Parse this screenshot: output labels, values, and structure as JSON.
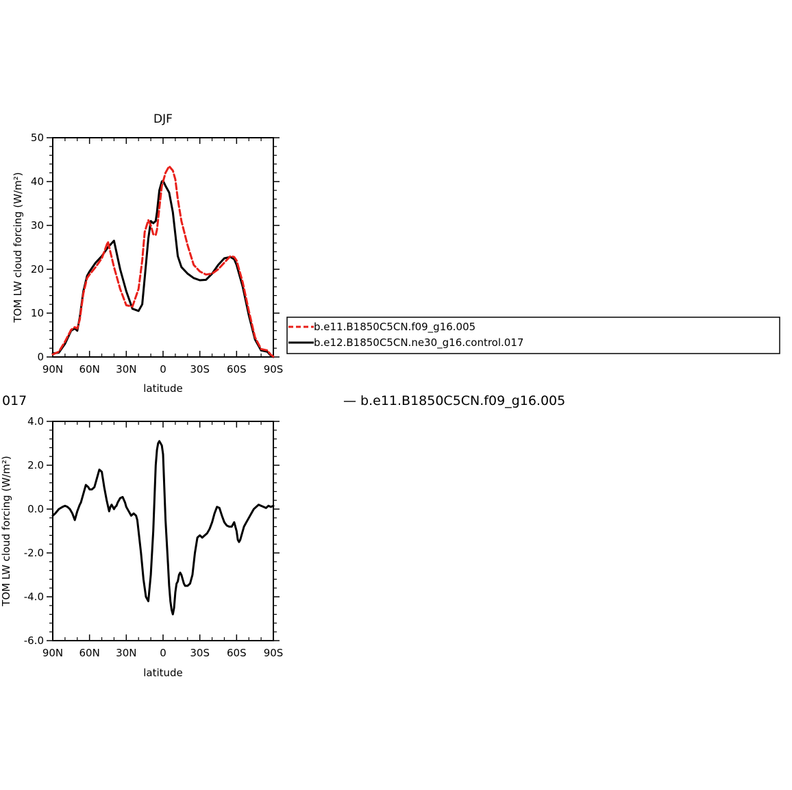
{
  "chart_data": [
    {
      "type": "line",
      "title": "DJF",
      "xlabel": "latitude",
      "ylabel": "TOM LW cloud forcing (W/m²)",
      "xlim": [
        90,
        -90
      ],
      "ylim": [
        0,
        50
      ],
      "x_ticks": [
        {
          "value": 90,
          "label": "90N"
        },
        {
          "value": 60,
          "label": "60N"
        },
        {
          "value": 30,
          "label": "30N"
        },
        {
          "value": 0,
          "label": "0"
        },
        {
          "value": -30,
          "label": "30S"
        },
        {
          "value": -60,
          "label": "60S"
        },
        {
          "value": -90,
          "label": "90S"
        }
      ],
      "y_ticks": [
        {
          "value": 0,
          "label": "0"
        },
        {
          "value": 10,
          "label": "10"
        },
        {
          "value": 20,
          "label": "20"
        },
        {
          "value": 30,
          "label": "30"
        },
        {
          "value": 40,
          "label": "40"
        },
        {
          "value": 50,
          "label": "50"
        }
      ],
      "grid": false,
      "legend_position": "right",
      "series": [
        {
          "name": "b.e11.B1850C5CN.f09_g16.005",
          "color": "#e8201a",
          "dash": "dashed",
          "x": [
            90,
            85,
            80,
            75,
            72,
            70,
            68,
            65,
            62,
            60,
            55,
            50,
            45,
            40,
            35,
            30,
            25,
            20,
            17,
            15,
            12,
            10,
            8,
            6,
            5,
            3,
            1,
            0,
            -2,
            -5,
            -8,
            -10,
            -12,
            -15,
            -20,
            -25,
            -30,
            -35,
            -40,
            -45,
            -50,
            -55,
            -58,
            -60,
            -65,
            -70,
            -75,
            -80,
            -85,
            -88,
            -90
          ],
          "y": [
            0.6,
            1.2,
            3.5,
            6.2,
            6.8,
            6.5,
            8.5,
            14.5,
            18.0,
            18.8,
            20.5,
            22.5,
            26.3,
            20.5,
            15.5,
            11.8,
            11.5,
            15.5,
            22.0,
            28.5,
            31.2,
            30.0,
            28.0,
            27.8,
            29.0,
            34.0,
            39.0,
            40.0,
            42.0,
            43.5,
            42.5,
            40.5,
            36.0,
            31.0,
            25.5,
            21.0,
            19.5,
            18.8,
            19.0,
            20.0,
            21.5,
            23.0,
            22.8,
            22.0,
            17.0,
            10.5,
            4.5,
            1.8,
            1.5,
            0.5,
            0.1
          ]
        },
        {
          "name": "b.e12.B1850C5CN.ne30_g16.control.017",
          "color": "#000000",
          "dash": "solid",
          "x": [
            90,
            85,
            80,
            75,
            72,
            70,
            68,
            65,
            62,
            60,
            55,
            50,
            45,
            40,
            35,
            30,
            25,
            20,
            17,
            15,
            12,
            10,
            8,
            6,
            5,
            3,
            1,
            0,
            -2,
            -5,
            -8,
            -10,
            -12,
            -15,
            -20,
            -25,
            -30,
            -35,
            -40,
            -45,
            -50,
            -55,
            -58,
            -60,
            -65,
            -70,
            -75,
            -80,
            -85,
            -88,
            -90
          ],
          "y": [
            0.8,
            1.0,
            3.0,
            6.0,
            6.5,
            6.0,
            9.0,
            15.0,
            18.5,
            19.5,
            21.5,
            23.0,
            25.0,
            26.5,
            20.0,
            15.0,
            11.0,
            10.5,
            12.0,
            18.0,
            27.0,
            31.0,
            30.5,
            31.0,
            33.0,
            38.0,
            40.0,
            40.2,
            39.0,
            37.5,
            33.0,
            28.0,
            23.0,
            20.5,
            19.0,
            18.0,
            17.5,
            17.6,
            19.0,
            21.0,
            22.5,
            22.8,
            22.3,
            21.0,
            16.0,
            9.5,
            4.0,
            1.5,
            1.2,
            0.3,
            0.0
          ]
        }
      ]
    },
    {
      "type": "line",
      "title": "",
      "xlabel": "latitude",
      "ylabel": "TOM LW cloud forcing (W/m²)",
      "xlim": [
        90,
        -90
      ],
      "ylim": [
        -6.0,
        4.0
      ],
      "x_ticks": [
        {
          "value": 90,
          "label": "90N"
        },
        {
          "value": 60,
          "label": "60N"
        },
        {
          "value": 30,
          "label": "30N"
        },
        {
          "value": 0,
          "label": "0"
        },
        {
          "value": -30,
          "label": "30S"
        },
        {
          "value": -60,
          "label": "60S"
        },
        {
          "value": -90,
          "label": "90S"
        }
      ],
      "y_ticks": [
        {
          "value": 4.0,
          "label": "4.0"
        },
        {
          "value": 2.0,
          "label": "2.0"
        },
        {
          "value": 0.0,
          "label": "0.0"
        },
        {
          "value": -2.0,
          "label": "-2.0"
        },
        {
          "value": -4.0,
          "label": "-4.0"
        },
        {
          "value": -6.0,
          "label": "-6.0"
        }
      ],
      "grid": false,
      "cut_title_left": "017",
      "cut_title_right": "— b.e11.B1850C5CN.f09_g16.005",
      "series": [
        {
          "color": "#000000",
          "dash": "solid",
          "x": [
            90,
            88,
            85,
            82,
            80,
            78,
            76,
            74,
            72,
            70,
            68,
            67,
            65,
            63,
            61,
            60,
            58,
            56,
            54,
            52,
            50,
            48,
            46,
            44,
            43,
            42,
            40,
            39,
            38,
            37,
            35,
            33,
            31,
            30,
            28,
            26,
            24,
            22,
            21,
            20,
            18,
            16,
            14,
            12,
            10,
            8,
            7,
            6,
            5,
            4,
            3,
            2,
            1,
            0,
            -1,
            -2,
            -3,
            -4,
            -5,
            -6,
            -7,
            -8,
            -9,
            -10,
            -11,
            -12,
            -13,
            -14,
            -15,
            -16,
            -17,
            -18,
            -20,
            -22,
            -24,
            -26,
            -28,
            -30,
            -31,
            -32,
            -33,
            -34,
            -36,
            -38,
            -40,
            -42,
            -44,
            -46,
            -48,
            -50,
            -52,
            -54,
            -56,
            -58,
            -60,
            -61,
            -62,
            -63,
            -64,
            -66,
            -68,
            -70,
            -72,
            -74,
            -76,
            -78,
            -80,
            -82,
            -84,
            -86,
            -88,
            -90
          ],
          "y": [
            -0.3,
            -0.2,
            0.0,
            0.1,
            0.15,
            0.1,
            0.0,
            -0.2,
            -0.5,
            -0.1,
            0.2,
            0.3,
            0.7,
            1.1,
            1.0,
            0.9,
            0.9,
            1.0,
            1.4,
            1.8,
            1.7,
            1.0,
            0.4,
            -0.1,
            0.1,
            0.2,
            0.0,
            0.1,
            0.15,
            0.3,
            0.5,
            0.55,
            0.3,
            0.1,
            -0.1,
            -0.3,
            -0.2,
            -0.3,
            -0.5,
            -1.0,
            -2.0,
            -3.2,
            -4.0,
            -4.2,
            -3.0,
            -1.0,
            0.5,
            2.0,
            2.7,
            3.0,
            3.1,
            3.0,
            2.9,
            2.5,
            1.0,
            -0.5,
            -1.5,
            -2.5,
            -3.5,
            -4.2,
            -4.6,
            -4.8,
            -4.5,
            -3.8,
            -3.4,
            -3.3,
            -3.0,
            -2.9,
            -3.0,
            -3.2,
            -3.4,
            -3.5,
            -3.5,
            -3.4,
            -3.0,
            -2.0,
            -1.3,
            -1.2,
            -1.25,
            -1.3,
            -1.25,
            -1.2,
            -1.1,
            -0.9,
            -0.6,
            -0.2,
            0.1,
            0.05,
            -0.3,
            -0.6,
            -0.75,
            -0.8,
            -0.8,
            -0.6,
            -1.0,
            -1.4,
            -1.5,
            -1.4,
            -1.2,
            -0.8,
            -0.6,
            -0.4,
            -0.2,
            0.0,
            0.1,
            0.2,
            0.15,
            0.1,
            0.05,
            0.15,
            0.1,
            0.15
          ]
        }
      ]
    }
  ]
}
